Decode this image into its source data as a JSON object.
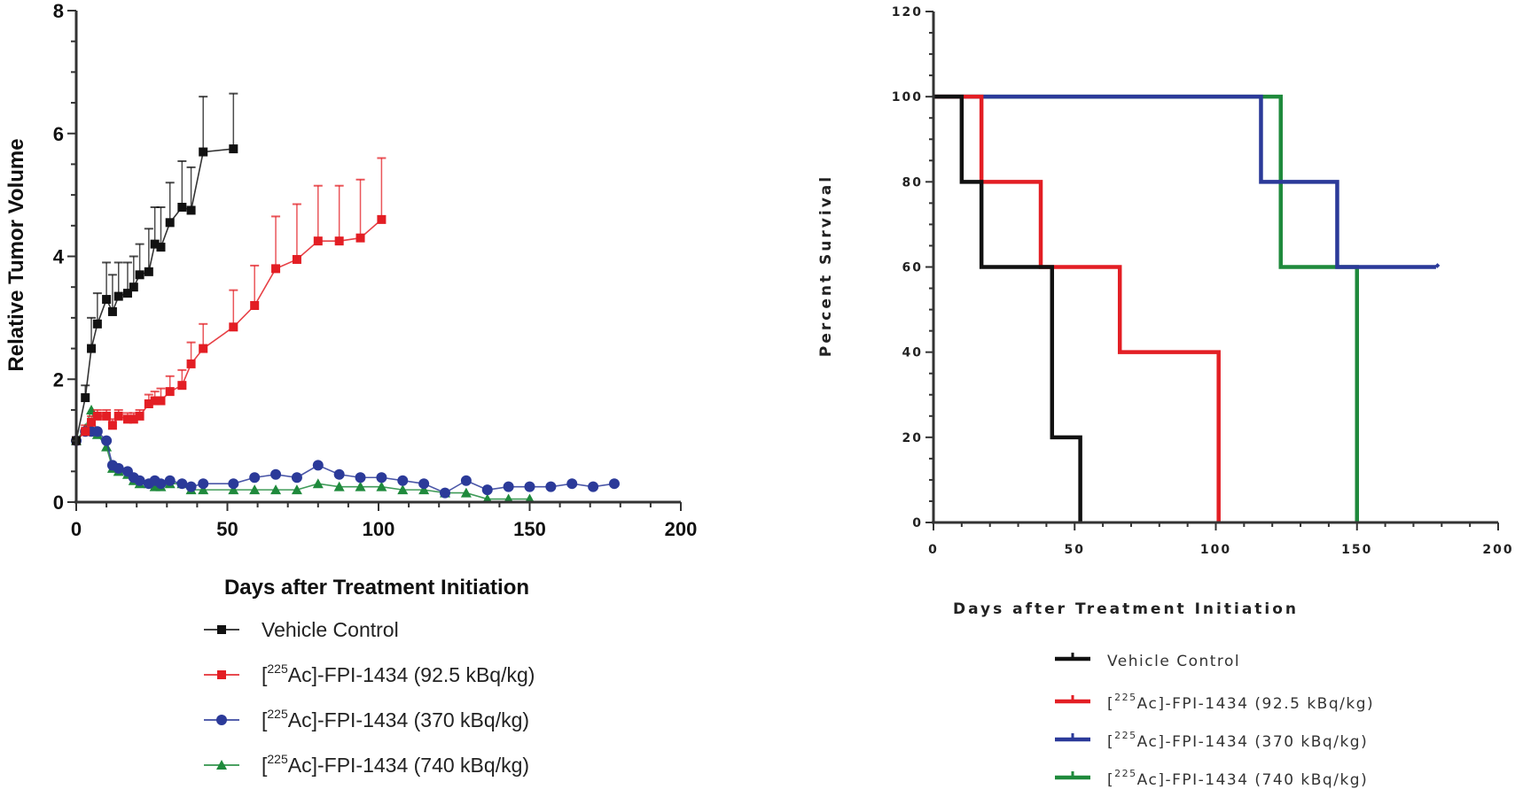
{
  "chart_data": [
    {
      "type": "line",
      "title": "",
      "xlabel": "Days after Treatment Initiation",
      "ylabel": "Relative Tumor Volume",
      "xlim": [
        0,
        200
      ],
      "ylim": [
        0,
        8
      ],
      "xticks": [
        "0",
        "50",
        "100",
        "150",
        "200"
      ],
      "yticks": [
        "0",
        "2",
        "4",
        "6",
        "8"
      ],
      "grid": false,
      "legend_position": "bottom",
      "series": [
        {
          "name": "Vehicle  Control",
          "color": "#111111",
          "marker": "square",
          "x": [
            0,
            3,
            5,
            7,
            10,
            12,
            14,
            17,
            19,
            21,
            24,
            26,
            28,
            31,
            35,
            38,
            42,
            52
          ],
          "y": [
            1.0,
            1.7,
            2.5,
            2.9,
            3.3,
            3.1,
            3.35,
            3.4,
            3.5,
            3.7,
            3.75,
            4.2,
            4.15,
            4.55,
            4.8,
            4.75,
            5.7,
            5.75
          ],
          "yerr": [
            0,
            0.2,
            0.5,
            0.5,
            0.6,
            0.6,
            0.55,
            0.5,
            0.5,
            0.5,
            0.7,
            0.6,
            0.65,
            0.65,
            0.75,
            0.7,
            0.9,
            0.9
          ]
        },
        {
          "name": "[225Ac]-FPI-1434 (92.5 kBq/kg)",
          "color": "#e31e24",
          "marker": "square",
          "x": [
            0,
            3,
            5,
            7,
            10,
            12,
            14,
            17,
            19,
            21,
            24,
            26,
            28,
            31,
            35,
            38,
            42,
            52,
            59,
            66,
            73,
            80,
            87,
            94,
            101
          ],
          "y": [
            1.0,
            1.15,
            1.3,
            1.4,
            1.4,
            1.25,
            1.4,
            1.35,
            1.35,
            1.4,
            1.6,
            1.65,
            1.65,
            1.8,
            1.9,
            2.25,
            2.5,
            2.85,
            3.2,
            3.8,
            3.95,
            4.25,
            4.25,
            4.3,
            4.6
          ],
          "yerr": [
            0,
            0.1,
            0.1,
            0.1,
            0.1,
            0.1,
            0.1,
            0.1,
            0.1,
            0.1,
            0.15,
            0.15,
            0.2,
            0.25,
            0.25,
            0.35,
            0.4,
            0.6,
            0.65,
            0.85,
            0.9,
            0.9,
            0.9,
            0.95,
            1.0
          ]
        },
        {
          "name": "[225Ac]-FPI-1434 (370 kBq/kg)",
          "color": "#2b3a99",
          "marker": "circle",
          "x": [
            0,
            3,
            5,
            7,
            10,
            12,
            14,
            17,
            19,
            21,
            24,
            26,
            28,
            31,
            35,
            38,
            42,
            52,
            59,
            66,
            73,
            80,
            87,
            94,
            101,
            108,
            115,
            122,
            129,
            136,
            143,
            150,
            157,
            164,
            171,
            178
          ],
          "y": [
            1.0,
            1.15,
            1.15,
            1.15,
            1.0,
            0.6,
            0.55,
            0.5,
            0.4,
            0.35,
            0.3,
            0.35,
            0.3,
            0.35,
            0.3,
            0.25,
            0.3,
            0.3,
            0.4,
            0.45,
            0.4,
            0.6,
            0.45,
            0.4,
            0.4,
            0.35,
            0.3,
            0.15,
            0.35,
            0.2,
            0.25,
            0.25,
            0.25,
            0.3,
            0.25,
            0.3
          ]
        },
        {
          "name": "[225Ac]-FPI-1434 (740 kBq/kg)",
          "color": "#1f8a3c",
          "marker": "triangle",
          "x": [
            0,
            3,
            5,
            7,
            10,
            12,
            14,
            17,
            19,
            21,
            24,
            26,
            28,
            31,
            35,
            38,
            42,
            52,
            59,
            66,
            73,
            80,
            87,
            94,
            101,
            108,
            115,
            122,
            129,
            136,
            143,
            150
          ],
          "y": [
            1.0,
            1.2,
            1.5,
            1.1,
            0.9,
            0.55,
            0.5,
            0.45,
            0.35,
            0.3,
            0.3,
            0.25,
            0.25,
            0.3,
            0.3,
            0.2,
            0.2,
            0.2,
            0.2,
            0.2,
            0.2,
            0.3,
            0.25,
            0.25,
            0.25,
            0.2,
            0.2,
            0.15,
            0.15,
            0.05,
            0.05,
            0.05
          ]
        }
      ]
    },
    {
      "type": "line",
      "subtype": "step (Kaplan-Meier)",
      "title": "",
      "xlabel": "Days after Treatment Initiation",
      "ylabel": "Percent Survival",
      "xlim": [
        0,
        200
      ],
      "ylim": [
        0,
        120
      ],
      "xticks": [
        "0",
        "50",
        "100",
        "150",
        "200"
      ],
      "yticks": [
        "0",
        "20",
        "40",
        "60",
        "80",
        "100",
        "120"
      ],
      "grid": false,
      "legend_position": "bottom",
      "series": [
        {
          "name": "Vehicle Control",
          "color": "#111111",
          "x": [
            0,
            10,
            17,
            42,
            52
          ],
          "y": [
            100,
            80,
            60,
            20,
            0
          ]
        },
        {
          "name": "[225Ac]-FPI-1434 (92.5 kBq/kg)",
          "color": "#e31e24",
          "x": [
            0,
            17,
            38,
            66,
            101
          ],
          "y": [
            100,
            80,
            60,
            40,
            0
          ]
        },
        {
          "name": "[225Ac]-FPI-1434 (370 kBq/kg)",
          "color": "#2b3a99",
          "x": [
            0,
            116,
            143,
            178
          ],
          "y": [
            100,
            80,
            60,
            60
          ],
          "censored_end": true
        },
        {
          "name": "[225Ac]-FPI-1434 (740 kBq/kg)",
          "color": "#1f8a3c",
          "x": [
            0,
            123,
            150
          ],
          "y": [
            100,
            60,
            0
          ]
        }
      ]
    }
  ],
  "legend": {
    "left": [
      {
        "pre": "",
        "sup": "",
        "text": "Vehicle  Control"
      },
      {
        "pre": "[",
        "sup": "225",
        "text": "Ac]-FPI-1434 (92.5 kBq/kg)"
      },
      {
        "pre": "[",
        "sup": "225",
        "text": "Ac]-FPI-1434 (370 kBq/kg)"
      },
      {
        "pre": "[",
        "sup": "225",
        "text": "Ac]-FPI-1434 (740 kBq/kg)"
      }
    ],
    "right": [
      {
        "pre": "",
        "sup": "",
        "text": "Vehicle Control"
      },
      {
        "pre": "[",
        "sup": "225",
        "text": "Ac]-FPI-1434 (92.5 kBq/kg)"
      },
      {
        "pre": "[",
        "sup": "225",
        "text": "Ac]-FPI-1434 (370 kBq/kg)"
      },
      {
        "pre": "[",
        "sup": "225",
        "text": "Ac]-FPI-1434 (740 kBq/kg)"
      }
    ]
  }
}
